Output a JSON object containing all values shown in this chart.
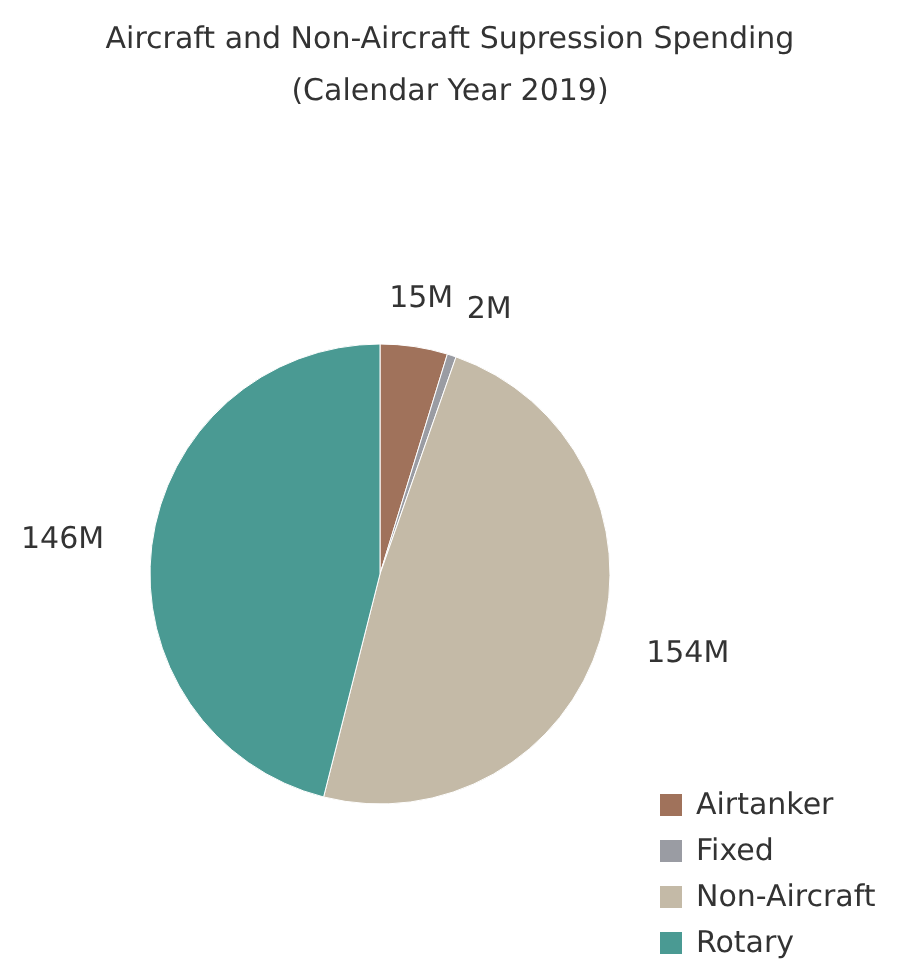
{
  "chart_data": {
    "type": "pie",
    "title": "Aircraft and Non-Aircraft Supression Spending",
    "subtitle": "(Calendar Year 2019)",
    "categories": [
      "Airtanker",
      "Fixed",
      "Non-Aircraft",
      "Rotary"
    ],
    "values": [
      15,
      2,
      154,
      146
    ],
    "value_labels": [
      "15M",
      "2M",
      "154M",
      "146M"
    ],
    "colors": [
      "#a0725b",
      "#9a9ca3",
      "#c4baa7",
      "#4a9a93"
    ],
    "legend": "bottom right"
  }
}
